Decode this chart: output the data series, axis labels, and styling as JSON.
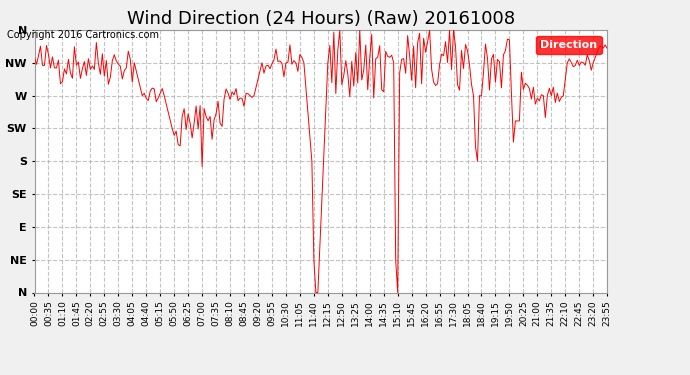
{
  "title": "Wind Direction (24 Hours) (Raw) 20161008",
  "copyright": "Copyright 2016 Cartronics.com",
  "legend_label": "Direction",
  "line_color": "red",
  "background_color": "#f0f0f0",
  "plot_bg_color": "#ffffff",
  "grid_color": "#aaaaaa",
  "ytick_labels": [
    "N",
    "NW",
    "W",
    "SW",
    "S",
    "SE",
    "E",
    "NE",
    "N"
  ],
  "ytick_values": [
    360,
    315,
    270,
    225,
    180,
    135,
    90,
    45,
    0
  ],
  "ylim": [
    0,
    360
  ],
  "title_fontsize": 13,
  "axis_fontsize": 7,
  "num_points": 288
}
